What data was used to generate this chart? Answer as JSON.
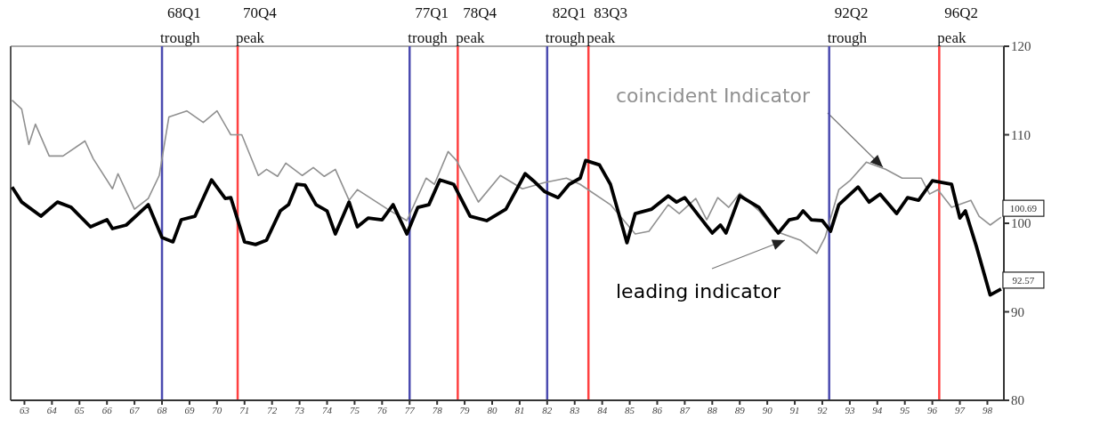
{
  "chart_data": {
    "type": "line",
    "xlim": [
      62.5,
      98.6
    ],
    "ylim": [
      80,
      120
    ],
    "xticks": [
      63,
      64,
      65,
      66,
      67,
      68,
      69,
      70,
      71,
      72,
      73,
      74,
      75,
      76,
      77,
      78,
      79,
      80,
      81,
      82,
      83,
      84,
      85,
      86,
      87,
      88,
      89,
      90,
      91,
      92,
      93,
      94,
      95,
      96,
      97,
      98
    ],
    "yticks": [
      80,
      90,
      100,
      110,
      120
    ],
    "marker": "none",
    "line_style": "solid",
    "series": [
      {
        "name": "coincident Indicator",
        "color": "#909090",
        "x": [
          62.55,
          62.9,
          63.16,
          63.4,
          63.9,
          64.4,
          65.2,
          65.5,
          66.2,
          66.4,
          67.0,
          67.5,
          67.9,
          68.25,
          68.9,
          69.5,
          70.0,
          70.5,
          70.9,
          71.5,
          71.8,
          72.2,
          72.5,
          73.1,
          73.5,
          73.9,
          74.3,
          74.8,
          75.1,
          76.2,
          76.9,
          77.6,
          77.9,
          78.4,
          78.7,
          79.5,
          80.3,
          81.1,
          81.9,
          82.7,
          83.2,
          84.3,
          85.2,
          85.7,
          86.4,
          86.8,
          87.4,
          87.8,
          88.2,
          88.6,
          89.0,
          89.7,
          90.3,
          91.2,
          91.8,
          92.1,
          92.6,
          93.0,
          93.6,
          94.3,
          94.9,
          95.6,
          95.9,
          96.2,
          96.7,
          97.4,
          97.7,
          98.1,
          98.5
        ],
        "values": [
          113.9,
          112.9,
          108.9,
          111.2,
          107.6,
          107.6,
          109.3,
          107.3,
          103.9,
          105.6,
          101.6,
          102.8,
          105.4,
          112.0,
          112.7,
          111.4,
          112.7,
          110.0,
          110.0,
          105.4,
          106.1,
          105.3,
          106.8,
          105.4,
          106.3,
          105.3,
          106.1,
          102.6,
          103.8,
          101.6,
          100.3,
          105.1,
          104.4,
          108.1,
          107.1,
          102.4,
          105.4,
          103.9,
          104.6,
          105.1,
          104.4,
          102.1,
          98.8,
          99.1,
          102.1,
          101.1,
          102.8,
          100.4,
          102.9,
          101.8,
          103.4,
          101.4,
          99.1,
          98.1,
          96.6,
          98.4,
          103.8,
          104.8,
          106.9,
          106.1,
          105.1,
          105.1,
          103.3,
          103.8,
          101.8,
          102.6,
          100.8,
          99.8,
          100.69
        ],
        "value_labels": [
          null,
          null,
          null,
          null,
          null,
          null,
          null,
          null,
          null,
          null,
          null,
          null,
          null,
          null,
          null,
          null,
          null,
          null,
          null,
          null,
          null,
          null,
          null,
          null,
          null,
          null,
          null,
          null,
          null,
          null,
          null,
          null,
          null,
          null,
          null,
          null,
          null,
          null,
          null,
          null,
          null,
          null,
          null,
          null,
          null,
          null,
          null,
          null,
          null,
          null,
          null,
          null,
          null,
          null,
          null,
          null,
          null,
          null,
          null,
          null,
          null,
          null,
          null,
          null,
          null,
          null,
          null,
          null,
          "100.69"
        ]
      },
      {
        "name": "leading indicator",
        "color": "#000000",
        "x": [
          62.55,
          62.9,
          63.6,
          64.2,
          64.7,
          65.4,
          66.0,
          66.2,
          66.7,
          67.5,
          68.0,
          68.4,
          68.7,
          69.2,
          69.8,
          70.3,
          70.5,
          71.0,
          71.4,
          71.8,
          72.3,
          72.6,
          72.9,
          73.2,
          73.6,
          74.0,
          74.3,
          74.8,
          75.1,
          75.5,
          76.0,
          76.4,
          76.9,
          77.3,
          77.7,
          78.1,
          78.6,
          79.2,
          79.8,
          80.5,
          81.2,
          81.5,
          81.9,
          82.4,
          82.8,
          83.2,
          83.4,
          83.9,
          84.3,
          84.9,
          85.2,
          85.8,
          86.4,
          86.7,
          87.0,
          87.5,
          88.0,
          88.3,
          88.5,
          89.0,
          89.7,
          90.4,
          90.8,
          91.1,
          91.3,
          91.6,
          92.0,
          92.3,
          92.6,
          93.3,
          93.7,
          94.1,
          94.7,
          95.1,
          95.5,
          96.0,
          96.7,
          97.0,
          97.2,
          97.6,
          98.1,
          98.5
        ],
        "values": [
          104.1,
          102.4,
          100.8,
          102.4,
          101.8,
          99.6,
          100.4,
          99.4,
          99.8,
          102.1,
          98.4,
          97.9,
          100.4,
          100.8,
          104.9,
          102.8,
          102.9,
          97.9,
          97.6,
          98.1,
          101.4,
          102.1,
          104.4,
          104.3,
          102.1,
          101.4,
          98.8,
          102.4,
          99.6,
          100.6,
          100.4,
          102.1,
          98.8,
          101.8,
          102.1,
          104.9,
          104.4,
          100.8,
          100.3,
          101.6,
          105.6,
          104.8,
          103.6,
          102.9,
          104.4,
          105.1,
          107.1,
          106.6,
          104.4,
          97.8,
          101.1,
          101.6,
          103.1,
          102.4,
          102.9,
          100.9,
          98.9,
          99.8,
          98.9,
          103.1,
          101.8,
          98.9,
          100.4,
          100.6,
          101.4,
          100.4,
          100.3,
          99.1,
          102.1,
          104.1,
          102.4,
          103.3,
          101.1,
          102.9,
          102.6,
          104.8,
          104.4,
          100.6,
          101.4,
          97.4,
          91.9,
          92.57
        ],
        "value_labels": [
          null,
          null,
          null,
          null,
          null,
          null,
          null,
          null,
          null,
          null,
          null,
          null,
          null,
          null,
          null,
          null,
          null,
          null,
          null,
          null,
          null,
          null,
          null,
          null,
          null,
          null,
          null,
          null,
          null,
          null,
          null,
          null,
          null,
          null,
          null,
          null,
          null,
          null,
          null,
          null,
          null,
          null,
          null,
          null,
          null,
          null,
          null,
          null,
          null,
          null,
          null,
          null,
          null,
          null,
          null,
          null,
          null,
          null,
          null,
          null,
          null,
          null,
          null,
          null,
          null,
          null,
          null,
          null,
          null,
          null,
          null,
          null,
          null,
          null,
          null,
          null,
          null,
          null,
          null,
          null,
          null,
          "92.57"
        ]
      }
    ],
    "ref_lines": [
      {
        "axis": "x",
        "value": 68,
        "label": "68Q1 trough",
        "color": "#4b4bb0"
      },
      {
        "axis": "x",
        "value": 70.75,
        "label": "70Q4 peak",
        "color": "#ff4040"
      },
      {
        "axis": "x",
        "value": 77,
        "label": "77Q1 trough",
        "color": "#4b4bb0"
      },
      {
        "axis": "x",
        "value": 78.75,
        "label": "78Q4 peak",
        "color": "#ff4040"
      },
      {
        "axis": "x",
        "value": 82,
        "label": "82Q1 trough",
        "color": "#4b4bb0"
      },
      {
        "axis": "x",
        "value": 83.5,
        "label": "83Q3 peak",
        "color": "#ff4040"
      },
      {
        "axis": "x",
        "value": 92.25,
        "label": "92Q2 trough",
        "color": "#4b4bb0"
      },
      {
        "axis": "x",
        "value": 96.25,
        "label": "96Q2 peak",
        "color": "#ff4040"
      }
    ]
  }
}
